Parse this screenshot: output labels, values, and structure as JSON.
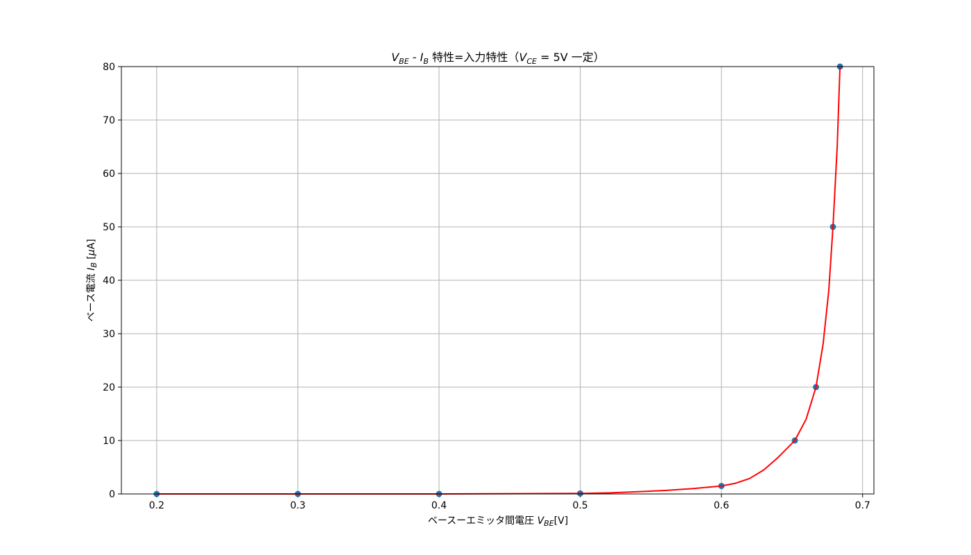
{
  "chart_data": {
    "type": "line",
    "title": {
      "v": "V",
      "v_sub": "BE",
      "dash": " - ",
      "i": "I",
      "i_sub": "B",
      "mid": " 特性=入力特性（",
      "vce": "V",
      "vce_sub": "CE",
      "end": " = 5V 一定）"
    },
    "xlabel": {
      "prefix": "ベースーエミッタ間電圧 ",
      "v": "V",
      "sub": "BE",
      "suffix": "[V]"
    },
    "ylabel": {
      "prefix": "ベース電流 ",
      "i": "I",
      "sub": "B",
      "suffix": " [",
      "mu": "μ",
      "unit": "A]"
    },
    "xlim": [
      0.175,
      0.708
    ],
    "ylim": [
      0,
      80
    ],
    "xticks": [
      0.2,
      0.3,
      0.4,
      0.5,
      0.6,
      0.7
    ],
    "xtick_labels": [
      "0.2",
      "0.3",
      "0.4",
      "0.5",
      "0.6",
      "0.7"
    ],
    "yticks": [
      0,
      10,
      20,
      30,
      40,
      50,
      60,
      70,
      80
    ],
    "ytick_labels": [
      "0",
      "10",
      "20",
      "30",
      "40",
      "50",
      "60",
      "70",
      "80"
    ],
    "grid": true,
    "series": [
      {
        "kind": "scatter",
        "color": "#1f77b4",
        "x": [
          0.2,
          0.3,
          0.4,
          0.5,
          0.6,
          0.652,
          0.667,
          0.679,
          0.684
        ],
        "y": [
          0,
          0,
          0,
          0.1,
          1.5,
          10,
          20,
          50,
          80
        ]
      },
      {
        "kind": "line",
        "color": "#ff0000",
        "x": [
          0.2,
          0.3,
          0.4,
          0.5,
          0.52,
          0.54,
          0.56,
          0.58,
          0.6,
          0.61,
          0.62,
          0.63,
          0.64,
          0.652,
          0.66,
          0.667,
          0.672,
          0.676,
          0.679,
          0.682,
          0.684
        ],
        "y": [
          0,
          0,
          0,
          0.1,
          0.2,
          0.4,
          0.65,
          1.0,
          1.5,
          2.0,
          2.9,
          4.5,
          6.8,
          10,
          14,
          20,
          28,
          38,
          50,
          65,
          80
        ]
      }
    ]
  }
}
